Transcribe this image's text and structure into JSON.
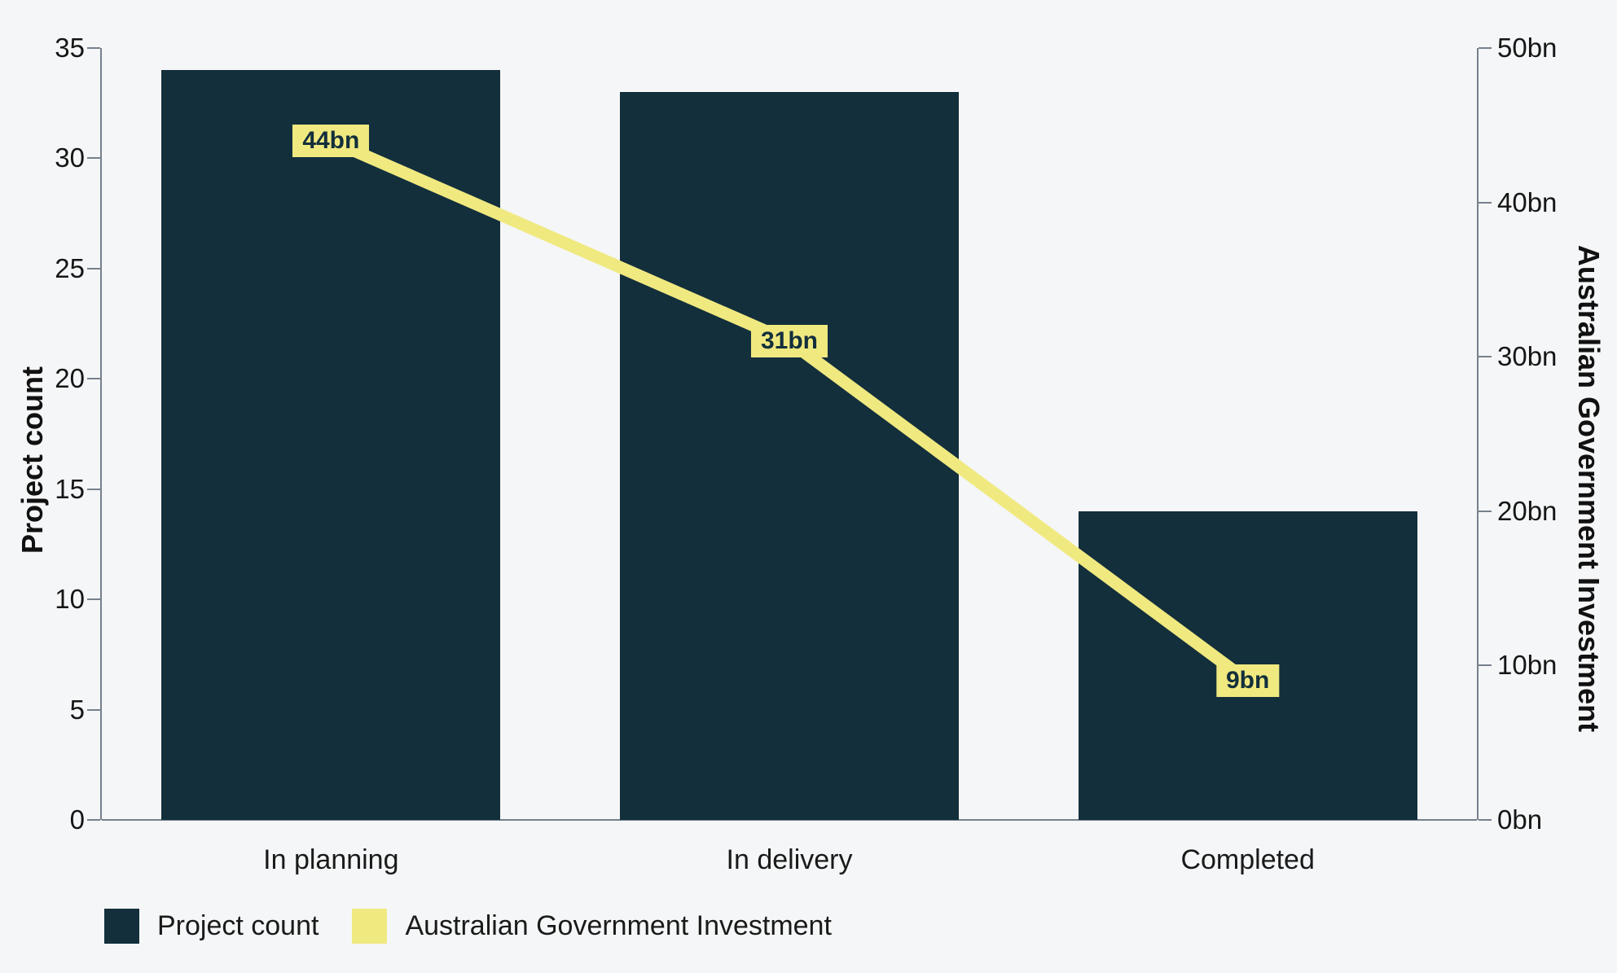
{
  "chart_data": {
    "type": "bar",
    "combo": "bar+line",
    "categories": [
      "In planning",
      "In delivery",
      "Completed"
    ],
    "series": [
      {
        "name": "Project count",
        "kind": "bar",
        "axis": "left",
        "values": [
          34,
          33,
          14
        ],
        "color": "#132f3c"
      },
      {
        "name": "Australian Government Investment",
        "kind": "line",
        "axis": "right",
        "values": [
          44,
          31,
          9
        ],
        "point_labels": [
          "44bn",
          "31bn",
          "9bn"
        ],
        "color": "#f0e980"
      }
    ],
    "left_axis": {
      "title": "Project count",
      "range": [
        0,
        35
      ],
      "tick_step": 5,
      "tick_labels": [
        "0",
        "5",
        "10",
        "15",
        "20",
        "25",
        "30",
        "35"
      ]
    },
    "right_axis": {
      "title": "Australian Government Investment",
      "range": [
        0,
        50
      ],
      "tick_step": 10,
      "tick_labels": [
        "0bn",
        "10bn",
        "20bn",
        "30bn",
        "40bn",
        "50bn"
      ]
    },
    "legend": [
      {
        "label": "Project count",
        "color": "#132f3c"
      },
      {
        "label": "Australian Government Investment",
        "color": "#f0e980"
      }
    ],
    "grid": false,
    "legend_position": "bottom-left"
  },
  "colors": {
    "background": "#f5f6f7",
    "bar": "#132f3c",
    "line": "#f0e980",
    "axis": "#76818c",
    "tick_text": "#161616",
    "point_label_text": "#132f3c"
  }
}
